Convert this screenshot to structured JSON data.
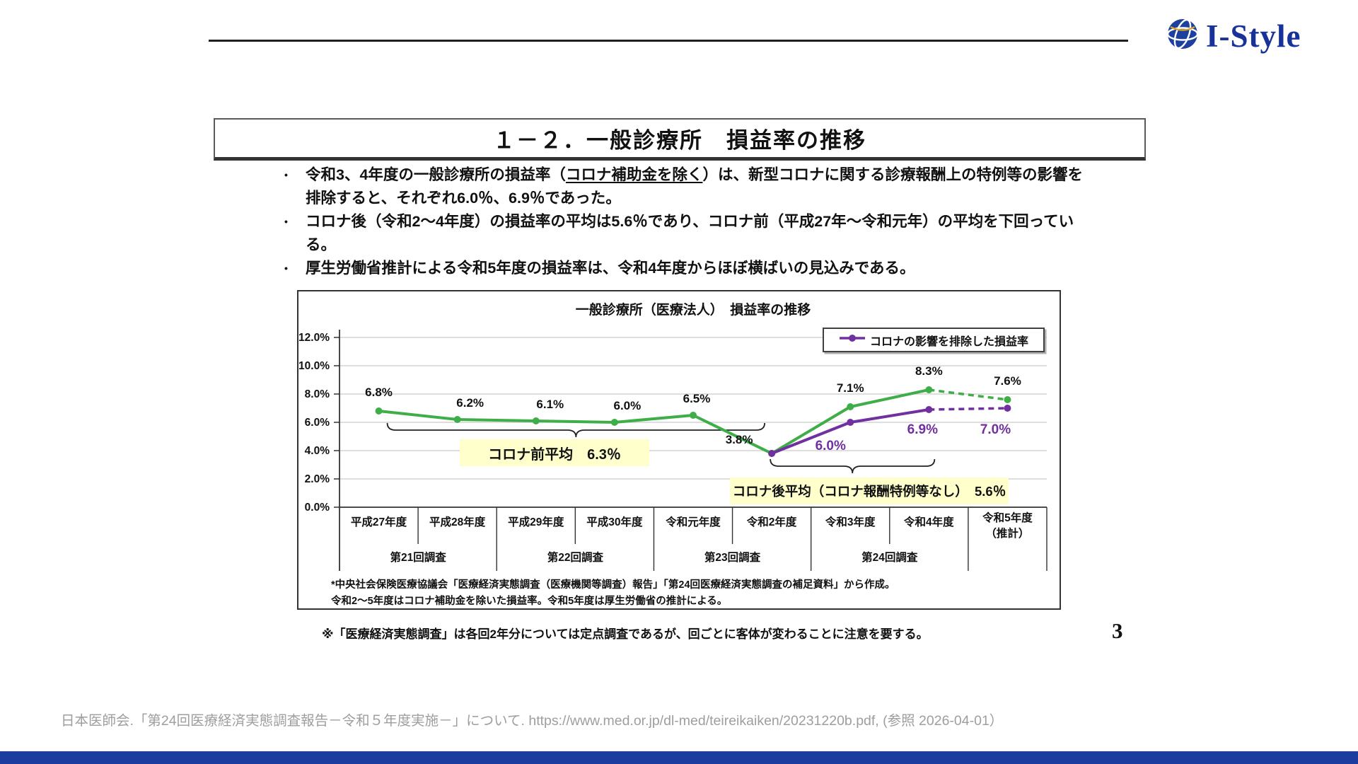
{
  "logo": {
    "text": "I-Style"
  },
  "slide": {
    "title": "１－２．一般診療所　損益率の推移",
    "bullets": {
      "b1_pre": "令和3、4年度の一般診療所の損益率（",
      "b1_underline": "コロナ補助金を除く",
      "b1_post": "）は、新型コロナに関する診療報酬上の特例等の影響を排除すると、それぞれ6.0％、6.9％であった。",
      "b2": "コロナ後（令和2～4年度）の損益率の平均は5.6％であり、コロナ前（平成27年～令和元年）の平均を下回っている。",
      "b3": "厚生労働省推計による令和5年度の損益率は、令和4年度からほぼ横ばいの見込みである。"
    }
  },
  "chart_data": {
    "type": "line",
    "title": "一般診療所（医療法人）　損益率の推移",
    "legend": [
      {
        "name": "コロナの影響を排除した損益率",
        "color": "#7030a0"
      }
    ],
    "categories": [
      "平成27年度",
      "平成28年度",
      "平成29年度",
      "平成30年度",
      "令和元年度",
      "令和2年度",
      "令和3年度",
      "令和4年度",
      "令和5年度\n（推計）"
    ],
    "survey_groups": [
      {
        "label": "第21回調査",
        "cols": [
          0,
          1
        ]
      },
      {
        "label": "第22回調査",
        "cols": [
          2,
          3
        ]
      },
      {
        "label": "第23回調査",
        "cols": [
          4,
          5
        ]
      },
      {
        "label": "第24回調査",
        "cols": [
          6,
          7
        ]
      }
    ],
    "ylim": [
      0,
      12
    ],
    "ytick_step": 2,
    "yticks": [
      "12.0%",
      "10.0%",
      "8.0%",
      "6.0%",
      "4.0%",
      "2.0%",
      "0.0%"
    ],
    "series": [
      {
        "name": "損益率",
        "color": "#3fae49",
        "values": [
          6.8,
          6.2,
          6.1,
          6.0,
          6.5,
          3.8,
          7.1,
          8.3,
          7.6
        ],
        "labels": [
          "6.8%",
          "6.2%",
          "6.1%",
          "6.0%",
          "6.5%",
          "3.8%",
          "7.1%",
          "8.3%",
          "7.6%"
        ],
        "start_index": 0,
        "dashed_from_index": 7
      },
      {
        "name": "コロナの影響を排除した損益率",
        "color": "#7030a0",
        "values": [
          3.8,
          6.0,
          6.9,
          7.0
        ],
        "labels": [
          null,
          "6.0%",
          "6.9%",
          "7.0%"
        ],
        "start_index": 5,
        "dashed_from_index": 2
      }
    ],
    "annotations": [
      {
        "label": "コロナ前平均　6.3％",
        "range": "平成27年度～令和元年度"
      },
      {
        "label": "コロナ後平均（コロナ報酬特例等なし）　5.6％",
        "range": "令和2年度～令和4年度"
      }
    ],
    "footnotes": [
      "*中央社会保険医療協議会「医療経済実態調査（医療機関等調査）報告」「第24回医療経済実態調査の補足資料」から作成。",
      "令和2～5年度はコロナ補助金を除いた損益率。令和5年度は厚生労働省の推計による。"
    ]
  },
  "note": "※「医療経済実態調査」は各回2年分については定点調査であるが、回ごとに客体が変わることに注意を要する。",
  "page_number": "3",
  "footer": "日本医師会.「第24回医療経済実態調査報告－令和５年度実施－」について. https://www.med.or.jp/dl-med/teireikaiken/20231220b.pdf, (参照 2026-04-01）"
}
